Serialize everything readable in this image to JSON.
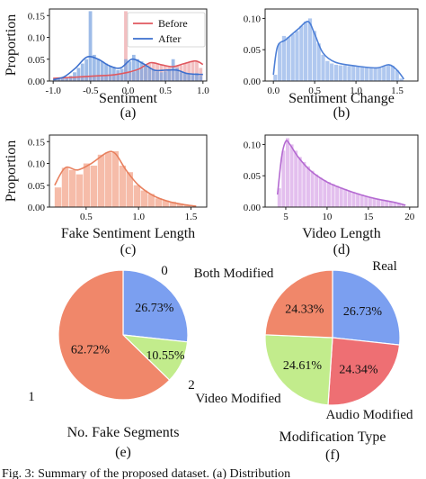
{
  "figure_caption": "Fig. 3: Summary of the proposed dataset. (a) Distribution",
  "colors": {
    "before": "#e88a8e",
    "before_line": "#e0585f",
    "after": "#7ea6e0",
    "after_line": "#3b6fce",
    "change": "#95b6ea",
    "change_line": "#4d7fd6",
    "fake_len": "#f3a58c",
    "fake_len_line": "#e8805e",
    "video_len": "#d9a9e8",
    "video_len_line": "#b46ad1",
    "pie_blue": "#7b9ff0",
    "pie_orange": "#f0876a",
    "pie_green": "#c2ec8c",
    "pie_red": "#ee6f73"
  },
  "chart_data": [
    {
      "type": "bar",
      "panel_label": "(a)",
      "xlabel": "Sentiment",
      "ylabel": "Proportion",
      "xlim": [
        -1.05,
        1.05
      ],
      "ylim": [
        0,
        0.165
      ],
      "xticks": [
        "-1.0",
        "-0.5",
        "0.0",
        "0.5",
        "1.0"
      ],
      "xtick_values": [
        -1.0,
        -0.5,
        0.0,
        0.5,
        1.0
      ],
      "yticks": [
        "0.00",
        "0.05",
        "0.10",
        "0.15"
      ],
      "ytick_values": [
        0,
        0.05,
        0.1,
        0.15
      ],
      "legend_position": "top-right",
      "bin_width": 0.0526,
      "series": [
        {
          "name": "Before",
          "color_key": "before",
          "bins": [
            -1.0,
            -0.947,
            -0.895,
            -0.842,
            -0.789,
            -0.737,
            -0.684,
            -0.632,
            -0.579,
            -0.526,
            -0.474,
            -0.421,
            -0.368,
            -0.316,
            -0.263,
            -0.211,
            -0.158,
            -0.105,
            -0.053,
            0.0,
            0.053,
            0.105,
            0.158,
            0.211,
            0.263,
            0.316,
            0.368,
            0.421,
            0.474,
            0.526,
            0.579,
            0.632,
            0.684,
            0.737,
            0.789,
            0.842,
            0.895,
            0.947
          ],
          "values": [
            0.004,
            0.005,
            0.006,
            0.007,
            0.008,
            0.009,
            0.01,
            0.011,
            0.012,
            0.013,
            0.013,
            0.012,
            0.011,
            0.011,
            0.012,
            0.013,
            0.014,
            0.015,
            0.16,
            0.022,
            0.02,
            0.024,
            0.028,
            0.035,
            0.04,
            0.042,
            0.04,
            0.038,
            0.036,
            0.034,
            0.033,
            0.034,
            0.036,
            0.04,
            0.042,
            0.044,
            0.045,
            0.03
          ],
          "kde": [
            [
              -1.0,
              0.006
            ],
            [
              -0.8,
              0.008
            ],
            [
              -0.6,
              0.01
            ],
            [
              -0.4,
              0.012
            ],
            [
              -0.2,
              0.014
            ],
            [
              0.0,
              0.02
            ],
            [
              0.15,
              0.028
            ],
            [
              0.3,
              0.042
            ],
            [
              0.45,
              0.037
            ],
            [
              0.6,
              0.033
            ],
            [
              0.75,
              0.04
            ],
            [
              0.9,
              0.046
            ],
            [
              1.0,
              0.038
            ]
          ]
        },
        {
          "name": "After",
          "color_key": "after",
          "bins": [
            -1.0,
            -0.947,
            -0.895,
            -0.842,
            -0.789,
            -0.737,
            -0.684,
            -0.632,
            -0.579,
            -0.526,
            -0.474,
            -0.421,
            -0.368,
            -0.316,
            -0.263,
            -0.211,
            -0.158,
            -0.105,
            -0.053,
            0.0,
            0.053,
            0.105,
            0.158,
            0.211,
            0.263,
            0.316,
            0.368,
            0.421,
            0.474,
            0.526,
            0.579,
            0.632,
            0.684,
            0.737,
            0.789,
            0.842,
            0.895,
            0.947
          ],
          "values": [
            0.003,
            0.004,
            0.006,
            0.008,
            0.012,
            0.02,
            0.03,
            0.04,
            0.05,
            0.16,
            0.06,
            0.05,
            0.045,
            0.04,
            0.035,
            0.03,
            0.025,
            0.028,
            0.05,
            0.045,
            0.06,
            0.05,
            0.045,
            0.035,
            0.03,
            0.025,
            0.022,
            0.02,
            0.022,
            0.025,
            0.05,
            0.03,
            0.02,
            0.018,
            0.016,
            0.015,
            0.018,
            0.012
          ],
          "kde": [
            [
              -1.0,
              0.003
            ],
            [
              -0.85,
              0.01
            ],
            [
              -0.7,
              0.03
            ],
            [
              -0.55,
              0.055
            ],
            [
              -0.4,
              0.05
            ],
            [
              -0.25,
              0.035
            ],
            [
              -0.1,
              0.03
            ],
            [
              0.05,
              0.05
            ],
            [
              0.2,
              0.04
            ],
            [
              0.35,
              0.025
            ],
            [
              0.5,
              0.025
            ],
            [
              0.65,
              0.025
            ],
            [
              0.8,
              0.017
            ],
            [
              1.0,
              0.015
            ]
          ]
        }
      ]
    },
    {
      "type": "bar",
      "panel_label": "(b)",
      "xlabel": "Sentiment Change",
      "ylabel": "",
      "xlim": [
        -0.1,
        1.75
      ],
      "ylim": [
        0,
        0.115
      ],
      "xticks": [
        "0.0",
        "0.5",
        "1.0",
        "1.5"
      ],
      "xtick_values": [
        0,
        0.5,
        1.0,
        1.5
      ],
      "yticks": [
        "0.00",
        "0.05",
        "0.10"
      ],
      "ytick_values": [
        0,
        0.05,
        0.1
      ],
      "bin_width": 0.0526,
      "series": [
        {
          "color_key": "change",
          "bins": [
            0.0,
            0.053,
            0.105,
            0.158,
            0.211,
            0.263,
            0.316,
            0.368,
            0.421,
            0.474,
            0.526,
            0.579,
            0.632,
            0.684,
            0.737,
            0.789,
            0.842,
            0.895,
            0.947,
            1.0,
            1.053,
            1.105,
            1.158,
            1.211,
            1.263,
            1.316,
            1.368,
            1.421,
            1.474,
            1.526
          ],
          "values": [
            0.01,
            0.06,
            0.072,
            0.07,
            0.075,
            0.08,
            0.088,
            0.095,
            0.1,
            0.08,
            0.06,
            0.042,
            0.032,
            0.028,
            0.026,
            0.025,
            0.025,
            0.024,
            0.024,
            0.023,
            0.022,
            0.022,
            0.021,
            0.021,
            0.022,
            0.024,
            0.026,
            0.024,
            0.017,
            0.004
          ],
          "kde": [
            [
              0.0,
              0.01
            ],
            [
              0.05,
              0.055
            ],
            [
              0.15,
              0.066
            ],
            [
              0.3,
              0.083
            ],
            [
              0.42,
              0.095
            ],
            [
              0.5,
              0.075
            ],
            [
              0.6,
              0.045
            ],
            [
              0.75,
              0.03
            ],
            [
              1.0,
              0.024
            ],
            [
              1.25,
              0.021
            ],
            [
              1.4,
              0.026
            ],
            [
              1.5,
              0.017
            ],
            [
              1.58,
              0.003
            ]
          ]
        }
      ]
    },
    {
      "type": "bar",
      "panel_label": "(c)",
      "xlabel": "Fake Sentiment Length",
      "ylabel": "Proportion",
      "xlim": [
        0.15,
        1.65
      ],
      "ylim": [
        0,
        0.165
      ],
      "xticks": [
        "0.5",
        "1.0",
        "1.5"
      ],
      "xtick_values": [
        0.5,
        1.0,
        1.5
      ],
      "yticks": [
        "0.00",
        "0.05",
        "0.10",
        "0.15"
      ],
      "ytick_values": [
        0,
        0.05,
        0.1,
        0.15
      ],
      "bin_width": 0.0684,
      "series": [
        {
          "color_key": "fake_len",
          "bins": [
            0.2,
            0.268,
            0.337,
            0.405,
            0.474,
            0.542,
            0.611,
            0.679,
            0.747,
            0.816,
            0.884,
            0.953,
            1.021,
            1.089,
            1.158,
            1.226,
            1.295,
            1.363,
            1.432
          ],
          "values": [
            0.045,
            0.09,
            0.085,
            0.075,
            0.1,
            0.095,
            0.12,
            0.125,
            0.128,
            0.095,
            0.08,
            0.05,
            0.038,
            0.03,
            0.02,
            0.015,
            0.012,
            0.008,
            0.004
          ],
          "kde": [
            [
              0.2,
              0.05
            ],
            [
              0.3,
              0.09
            ],
            [
              0.42,
              0.085
            ],
            [
              0.55,
              0.1
            ],
            [
              0.7,
              0.125
            ],
            [
              0.78,
              0.122
            ],
            [
              0.88,
              0.085
            ],
            [
              1.0,
              0.05
            ],
            [
              1.15,
              0.025
            ],
            [
              1.3,
              0.012
            ],
            [
              1.45,
              0.005
            ],
            [
              1.55,
              0.002
            ]
          ]
        }
      ]
    },
    {
      "type": "bar",
      "panel_label": "(d)",
      "xlabel": "Video Length",
      "ylabel": "",
      "xlim": [
        2.5,
        21
      ],
      "ylim": [
        0,
        0.115
      ],
      "xticks": [
        "5",
        "10",
        "15",
        "20"
      ],
      "xtick_values": [
        5,
        10,
        15,
        20
      ],
      "yticks": [
        "0.00",
        "0.05",
        "0.10"
      ],
      "ytick_values": [
        0,
        0.05,
        0.1
      ],
      "bin_width": 0.5,
      "series": [
        {
          "color_key": "video_len",
          "bins": [
            4.0,
            4.5,
            5.0,
            5.5,
            6.0,
            6.5,
            7.0,
            7.5,
            8.0,
            8.5,
            9.0,
            9.5,
            10.0,
            10.5,
            11.0,
            11.5,
            12.0,
            12.5,
            13.0,
            13.5,
            14.0,
            14.5,
            15.0,
            15.5,
            16.0,
            16.5,
            17.0,
            17.5,
            18.0,
            18.5,
            19.0
          ],
          "values": [
            0.03,
            0.09,
            0.11,
            0.1,
            0.09,
            0.08,
            0.072,
            0.065,
            0.058,
            0.052,
            0.047,
            0.043,
            0.04,
            0.037,
            0.034,
            0.031,
            0.029,
            0.026,
            0.024,
            0.022,
            0.02,
            0.018,
            0.016,
            0.014,
            0.013,
            0.012,
            0.011,
            0.009,
            0.008,
            0.006,
            0.004
          ],
          "kde": [
            [
              4.0,
              0.02
            ],
            [
              4.5,
              0.08
            ],
            [
              5.0,
              0.105
            ],
            [
              5.5,
              0.1
            ],
            [
              6.5,
              0.08
            ],
            [
              8.0,
              0.058
            ],
            [
              10.0,
              0.04
            ],
            [
              12.0,
              0.029
            ],
            [
              14.0,
              0.02
            ],
            [
              16.0,
              0.013
            ],
            [
              18.0,
              0.008
            ],
            [
              19.5,
              0.003
            ]
          ]
        }
      ]
    },
    {
      "type": "pie",
      "panel_label": "(e)",
      "title_below": "No. Fake Segments",
      "slices": [
        {
          "label": "0",
          "value": 26.73,
          "text": "26.73%",
          "color_key": "pie_blue"
        },
        {
          "label": "2",
          "value": 10.55,
          "text": "10.55%",
          "color_key": "pie_green"
        },
        {
          "label": "1",
          "value": 62.72,
          "text": "62.72%",
          "color_key": "pie_orange"
        }
      ]
    },
    {
      "type": "pie",
      "panel_label": "(f)",
      "title_below": "Modification Type",
      "slices": [
        {
          "label": "Real",
          "value": 26.73,
          "text": "26.73%",
          "color_key": "pie_blue"
        },
        {
          "label": "Audio Modified",
          "value": 24.34,
          "text": "24.34%",
          "color_key": "pie_red"
        },
        {
          "label": "Video Modified",
          "value": 24.61,
          "text": "24.61%",
          "color_key": "pie_green"
        },
        {
          "label": "Both Modified",
          "value": 24.33,
          "text": "24.33%",
          "color_key": "pie_orange"
        }
      ]
    }
  ]
}
